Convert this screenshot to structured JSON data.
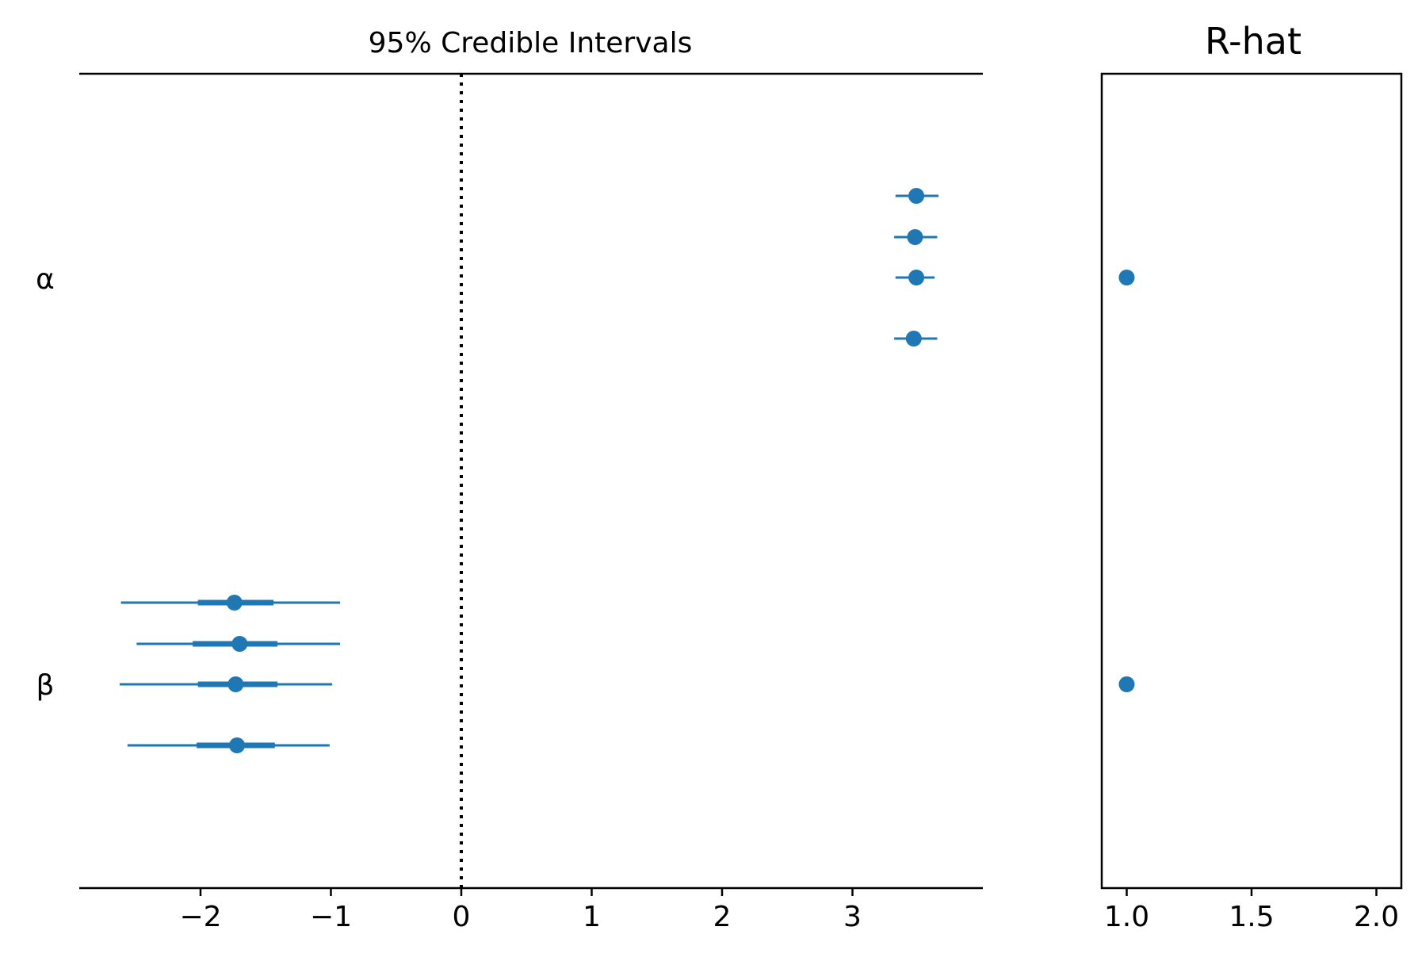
{
  "chart_data": [
    {
      "type": "forest",
      "title": "95% Credible Intervals",
      "x_tick_labels": [
        "−2",
        "−1",
        "0",
        "1",
        "2",
        "3"
      ],
      "x_ticks": [
        -2,
        -1,
        0,
        1,
        2,
        3
      ],
      "xlim": [
        -2.93,
        4.0
      ],
      "reference_line": 0,
      "parameters": [
        {
          "label": "α",
          "chains": [
            {
              "mean": 3.49,
              "hdi_95": [
                3.33,
                3.66
              ],
              "iqr": [
                3.44,
                3.54
              ]
            },
            {
              "mean": 3.48,
              "hdi_95": [
                3.32,
                3.65
              ],
              "iqr": [
                3.43,
                3.53
              ]
            },
            {
              "mean": 3.49,
              "hdi_95": [
                3.33,
                3.63
              ],
              "iqr": [
                3.44,
                3.54
              ]
            },
            {
              "mean": 3.47,
              "hdi_95": [
                3.32,
                3.65
              ],
              "iqr": [
                3.42,
                3.52
              ]
            }
          ]
        },
        {
          "label": "β",
          "chains": [
            {
              "mean": -1.74,
              "hdi_95": [
                -2.61,
                -0.93
              ],
              "iqr": [
                -2.02,
                -1.44
              ]
            },
            {
              "mean": -1.7,
              "hdi_95": [
                -2.49,
                -0.93
              ],
              "iqr": [
                -2.06,
                -1.41
              ]
            },
            {
              "mean": -1.73,
              "hdi_95": [
                -2.62,
                -0.99
              ],
              "iqr": [
                -2.02,
                -1.41
              ]
            },
            {
              "mean": -1.72,
              "hdi_95": [
                -2.56,
                -1.01
              ],
              "iqr": [
                -2.03,
                -1.43
              ]
            }
          ]
        }
      ],
      "color": "#1f77b4"
    },
    {
      "type": "scatter",
      "title": "R-hat",
      "x_tick_labels": [
        "1.0",
        "1.5",
        "2.0"
      ],
      "x_ticks": [
        1.0,
        1.5,
        2.0
      ],
      "xlim": [
        0.9,
        2.1
      ],
      "points": [
        {
          "parameter": "α",
          "value": 1.0
        },
        {
          "parameter": "β",
          "value": 1.0
        }
      ],
      "color": "#1f77b4"
    }
  ]
}
